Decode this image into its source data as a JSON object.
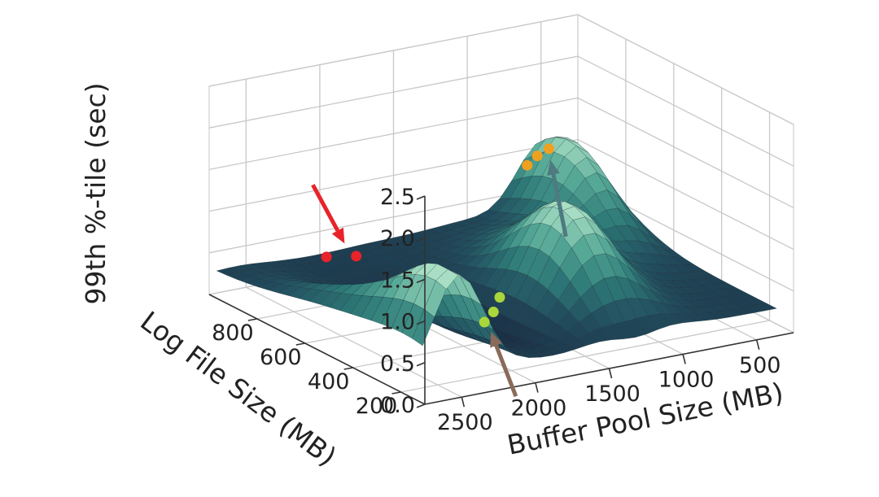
{
  "chart_data": {
    "type": "surface3d",
    "axes": {
      "x": {
        "label": "Buffer Pool Size (MB)",
        "ticks": [
          500,
          1000,
          1500,
          2000,
          2500
        ],
        "range": [
          250,
          2750
        ]
      },
      "y": {
        "label": "Log File Size (MB)",
        "ticks": [
          200,
          400,
          600,
          800
        ],
        "range": [
          100,
          1000
        ]
      },
      "z": {
        "label": "99th %-tile (sec)",
        "ticks": [
          0.0,
          0.5,
          1.0,
          1.5,
          2.0,
          2.5
        ],
        "tick_labels": [
          "0.0",
          "0.5",
          "1.0",
          "1.5",
          "2.0",
          "2.5"
        ],
        "range": [
          0,
          2.5
        ]
      }
    },
    "surface": {
      "colormap": [
        "#1b2f45",
        "#224e5e",
        "#2e7a78",
        "#55a896",
        "#a8dec4"
      ],
      "z_min": 0.08,
      "z_max": 1.3
    },
    "points": [
      {
        "group": "red",
        "x": 2150,
        "y": 880,
        "z": 0.42
      },
      {
        "group": "red",
        "x": 1980,
        "y": 860,
        "z": 0.4
      },
      {
        "group": "green",
        "x": 1810,
        "y": 430,
        "z": 0.18
      },
      {
        "group": "green",
        "x": 1700,
        "y": 460,
        "z": 0.22
      },
      {
        "group": "green",
        "x": 1560,
        "y": 520,
        "z": 0.26
      },
      {
        "group": "orange",
        "x": 610,
        "y": 990,
        "z": 0.83
      },
      {
        "group": "orange",
        "x": 590,
        "y": 960,
        "z": 0.98
      },
      {
        "group": "orange",
        "x": 560,
        "y": 930,
        "z": 1.1
      }
    ],
    "point_colors": {
      "red": "#e8232a",
      "green": "#a9d63a",
      "orange": "#f0a020"
    },
    "arrow_colors": {
      "red": "#e8232a",
      "green": "#8a6a5a",
      "orange": "#4f7a80"
    },
    "grid": true,
    "legend": "none"
  }
}
